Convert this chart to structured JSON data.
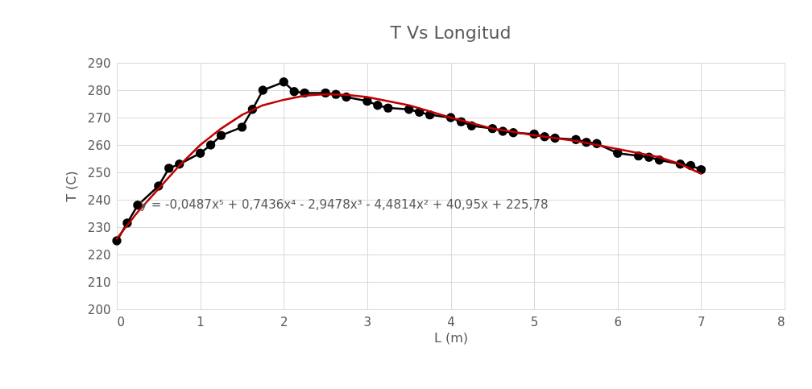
{
  "chart_data": {
    "type": "line",
    "title": "T Vs Longitud",
    "xlabel": "L (m)",
    "ylabel": "T (C)",
    "xlim": [
      0,
      8
    ],
    "xticks": [
      0,
      1,
      2,
      3,
      4,
      5,
      6,
      7,
      8
    ],
    "ylim": [
      200,
      290
    ],
    "yticks": [
      200,
      210,
      220,
      230,
      240,
      250,
      260,
      270,
      280,
      290
    ],
    "grid": true,
    "legend": false,
    "series": [
      {
        "color": "#000000",
        "marker": "circle",
        "line_style": "solid",
        "x": [
          0,
          0.125,
          0.25,
          0.5,
          0.625,
          0.75,
          1,
          1.125,
          1.25,
          1.5,
          1.625,
          1.75,
          2,
          2.125,
          2.25,
          2.5,
          2.625,
          2.75,
          3,
          3.125,
          3.25,
          3.5,
          3.625,
          3.75,
          4,
          4.125,
          4.25,
          4.5,
          4.625,
          4.75,
          5,
          5.125,
          5.25,
          5.5,
          5.625,
          5.75,
          6,
          6.25,
          6.375,
          6.5,
          6.75,
          6.875,
          7
        ],
        "values": [
          225,
          231.5,
          238,
          245,
          251.5,
          253,
          257,
          260,
          263.5,
          266.5,
          273,
          280,
          283,
          279.5,
          279,
          279,
          278.5,
          277.5,
          276,
          274.5,
          273.5,
          273,
          272,
          271,
          270,
          268.5,
          267,
          266,
          265,
          264.5,
          264,
          263,
          262.5,
          262,
          261,
          260.5,
          257,
          256,
          255.5,
          254.5,
          253,
          252.5,
          251
        ]
      },
      {
        "color": "#c00000",
        "marker": "none",
        "line_style": "solid",
        "x": [
          0,
          0.25,
          0.5,
          0.75,
          1,
          1.25,
          1.5,
          1.75,
          2,
          2.25,
          2.5,
          2.75,
          3,
          3.5,
          4,
          4.5,
          5,
          5.5,
          6,
          6.5,
          6.75,
          7
        ],
        "values": [
          225.8,
          235.5,
          244,
          252.5,
          260,
          266,
          271,
          274.5,
          276.5,
          278,
          278.5,
          278.3,
          277.5,
          274.5,
          270,
          266,
          263.5,
          261.5,
          258.5,
          255.5,
          253,
          249.5
        ]
      }
    ],
    "annotations": [
      "y = -0,0487x⁵ + 0,7436x⁴ - 2,9478x³ - 4,4814x² + 40,95x + 225,78"
    ]
  }
}
